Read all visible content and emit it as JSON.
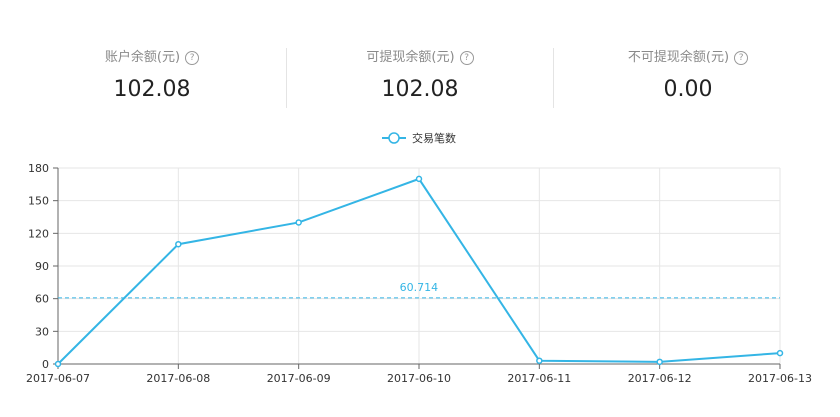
{
  "stats": [
    {
      "label": "账户余额(元)",
      "value": "102.08"
    },
    {
      "label": "可提现余额(元)",
      "value": "102.08"
    },
    {
      "label": "不可提现余额(元)",
      "value": "0.00"
    }
  ],
  "help_icon": "question-circle-icon",
  "help_glyph": "?",
  "colors": {
    "line": "#34b5e5",
    "grid": "#e6e6e6",
    "axis": "#666666"
  },
  "chart_data": {
    "type": "line",
    "categories": [
      "2017-06-07",
      "2017-06-08",
      "2017-06-09",
      "2017-06-10",
      "2017-06-11",
      "2017-06-12",
      "2017-06-13"
    ],
    "series": [
      {
        "name": "交易笔数",
        "values": [
          0,
          110,
          130,
          170,
          3,
          2,
          10
        ]
      }
    ],
    "ylim": [
      0,
      180
    ],
    "yticks": [
      0,
      30,
      60,
      90,
      120,
      150,
      180
    ],
    "grid": true,
    "legend": "top-center",
    "average_line": {
      "value": 60.714,
      "label": "60.714"
    }
  }
}
